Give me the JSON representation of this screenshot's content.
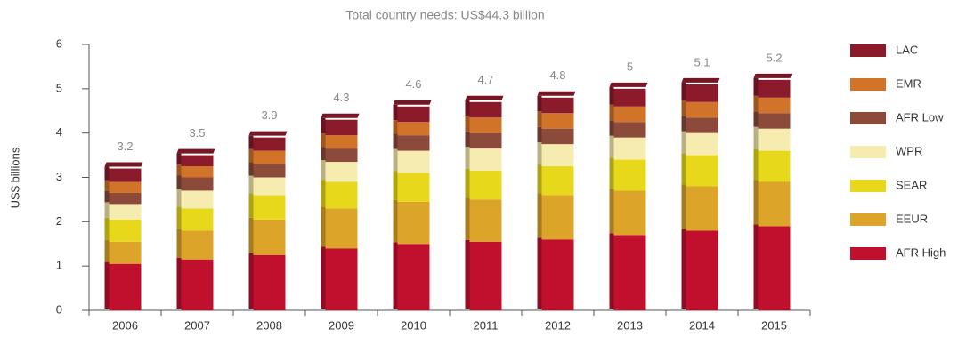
{
  "chart_data": {
    "type": "stacked-bar",
    "title": "Total country needs: US$44.3 billion",
    "y_label": "US$ billions",
    "categories": [
      "2006",
      "2007",
      "2008",
      "2009",
      "2010",
      "2011",
      "2012",
      "2013",
      "2014",
      "2015"
    ],
    "series": [
      {
        "name": "AFR High",
        "color": "#c0102e",
        "values": [
          1.05,
          1.15,
          1.25,
          1.4,
          1.5,
          1.55,
          1.6,
          1.7,
          1.8,
          1.9
        ]
      },
      {
        "name": "EEUR",
        "color": "#dca52a",
        "values": [
          0.5,
          0.65,
          0.8,
          0.9,
          0.95,
          0.95,
          1.0,
          1.0,
          1.0,
          1.0
        ]
      },
      {
        "name": "SEAR",
        "color": "#e8d81c",
        "values": [
          0.5,
          0.5,
          0.55,
          0.6,
          0.65,
          0.65,
          0.65,
          0.7,
          0.7,
          0.7
        ]
      },
      {
        "name": "WPR",
        "color": "#f6ecb0",
        "values": [
          0.35,
          0.4,
          0.4,
          0.45,
          0.5,
          0.5,
          0.5,
          0.5,
          0.5,
          0.5
        ]
      },
      {
        "name": "AFR Low",
        "color": "#8b4a3a",
        "values": [
          0.25,
          0.3,
          0.3,
          0.3,
          0.35,
          0.35,
          0.35,
          0.35,
          0.35,
          0.35
        ]
      },
      {
        "name": "EMR",
        "color": "#d2732a",
        "values": [
          0.25,
          0.25,
          0.3,
          0.3,
          0.3,
          0.35,
          0.35,
          0.35,
          0.35,
          0.35
        ]
      },
      {
        "name": "LAC",
        "color": "#8b1a2b",
        "values": [
          0.3,
          0.25,
          0.3,
          0.35,
          0.35,
          0.35,
          0.35,
          0.4,
          0.4,
          0.4
        ]
      }
    ],
    "totals": [
      3.2,
      3.5,
      3.9,
      4.3,
      4.6,
      4.7,
      4.8,
      5,
      5.1,
      5.2
    ],
    "ylim": [
      0,
      6
    ],
    "yticks": [
      0,
      1,
      2,
      3,
      4,
      5,
      6
    ],
    "legend": "right"
  }
}
